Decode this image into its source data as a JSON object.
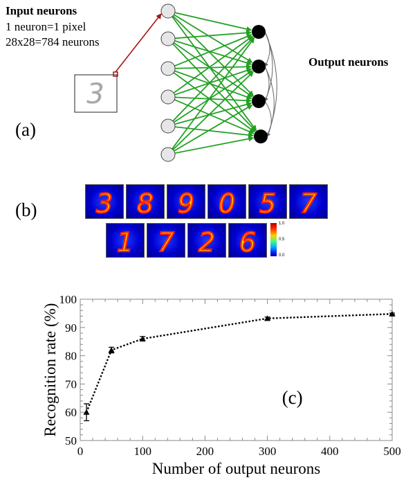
{
  "panel_a": {
    "input_title": "Input neurons",
    "input_line1": "1 neuron=1 pixel",
    "input_line2": "28x28=784 neurons",
    "output_title": "Output neurons",
    "label": "(a)",
    "input_digit": "3",
    "colors": {
      "connection": "#22a022",
      "input_arrow": "#aa1111",
      "inhibition": "#666666",
      "input_node": "#e6e6e6",
      "output_node": "#000000"
    }
  },
  "panel_b": {
    "label": "(b)",
    "row1_digits": [
      "3",
      "8",
      "9",
      "0",
      "5",
      "7"
    ],
    "row2_digits": [
      "1",
      "7",
      "2",
      "6"
    ],
    "colorbar_ticks": [
      "1.0",
      "0.5",
      "0.0"
    ]
  },
  "chart_data": {
    "type": "line",
    "label": "(c)",
    "xlabel": "Number of output neurons",
    "ylabel": "Recognition rate (%)",
    "xlim": [
      0,
      500
    ],
    "ylim": [
      50,
      100
    ],
    "xticks": [
      "0",
      "100",
      "200",
      "300",
      "400",
      "500"
    ],
    "yticks": [
      "50",
      "60",
      "70",
      "80",
      "90",
      "100"
    ],
    "x": [
      10,
      50,
      100,
      300,
      500
    ],
    "y": [
      60,
      82,
      86,
      93.2,
      94.8
    ],
    "err": [
      3,
      1,
      0.8,
      0.5,
      0.3
    ],
    "grid": false,
    "marker": "triangle",
    "line_style": "dotted"
  }
}
